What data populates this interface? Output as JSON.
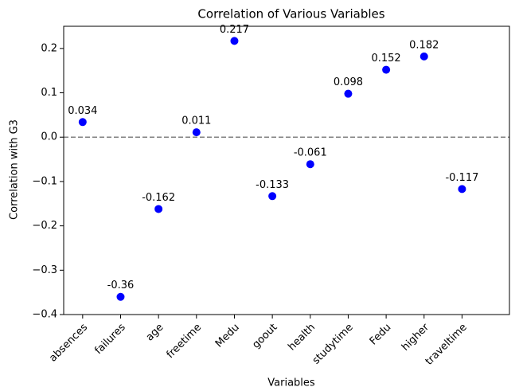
{
  "chart_data": {
    "type": "scatter",
    "title": "Correlation of Various Variables",
    "xlabel": "Variables",
    "ylabel": "Correlation with G3",
    "categories": [
      "absences",
      "failures",
      "age",
      "freetime",
      "Medu",
      "goout",
      "health",
      "studytime",
      "Fedu",
      "higher",
      "traveltime"
    ],
    "values": [
      0.034,
      -0.36,
      -0.162,
      0.011,
      0.217,
      -0.133,
      -0.061,
      0.098,
      0.152,
      0.182,
      -0.117
    ],
    "color": "#0000ff",
    "ylim": [
      -0.4,
      0.25
    ],
    "yticks": [
      {
        "value": -0.4,
        "label": "−0.4"
      },
      {
        "value": -0.3,
        "label": "−0.3"
      },
      {
        "value": -0.2,
        "label": "−0.2"
      },
      {
        "value": -0.1,
        "label": "−0.1"
      },
      {
        "value": 0,
        "label": "0.0"
      },
      0.1,
      0.2
    ],
    "hline": 0,
    "hline_color": "#808080"
  }
}
